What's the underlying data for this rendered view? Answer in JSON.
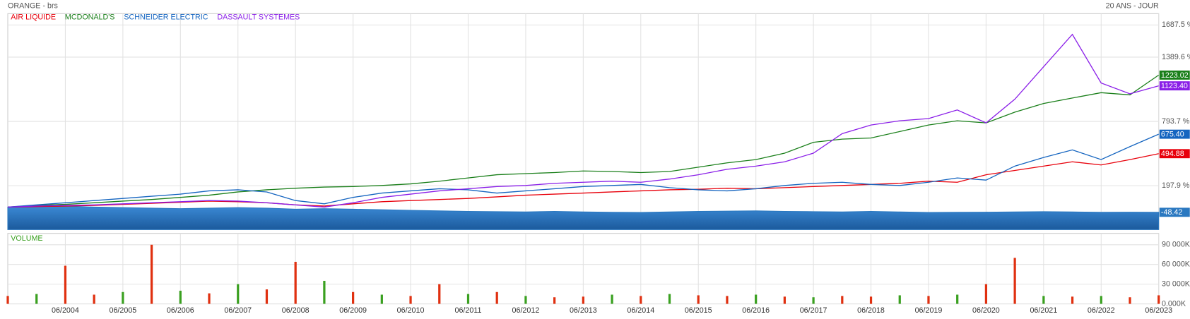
{
  "chart_data": [
    {
      "type": "line",
      "title": "ORANGE - brs",
      "subtitle": "20 ANS - JOUR",
      "legend": "top-left",
      "grid": true,
      "x": [
        "06/2003",
        "12/2003",
        "06/2004",
        "12/2004",
        "06/2005",
        "12/2005",
        "06/2006",
        "12/2006",
        "06/2007",
        "12/2007",
        "06/2008",
        "12/2008",
        "06/2009",
        "12/2009",
        "06/2010",
        "12/2010",
        "06/2011",
        "12/2011",
        "06/2012",
        "12/2012",
        "06/2013",
        "12/2013",
        "06/2014",
        "12/2014",
        "06/2015",
        "12/2015",
        "06/2016",
        "12/2016",
        "06/2017",
        "12/2017",
        "06/2018",
        "12/2018",
        "06/2019",
        "12/2019",
        "06/2020",
        "12/2020",
        "06/2021",
        "12/2021",
        "06/2022",
        "12/2022",
        "06/2023"
      ],
      "xlim": [
        "06/2003",
        "06/2023"
      ],
      "xticks": [
        "06/2004",
        "06/2005",
        "06/2006",
        "06/2007",
        "06/2008",
        "06/2009",
        "06/2010",
        "06/2011",
        "06/2012",
        "06/2013",
        "06/2014",
        "06/2015",
        "06/2016",
        "06/2017",
        "06/2018",
        "06/2019",
        "06/2020",
        "06/2021",
        "06/2022",
        "06/2023"
      ],
      "ylim": [
        -208.7,
        1792.6
      ],
      "yticks": [
        {
          "value": 197.9,
          "label": "197.9 %"
        },
        {
          "value": 793.7,
          "label": "793.7 %"
        },
        {
          "value": 1389.6,
          "label": "1389.6 %"
        },
        {
          "value": 1687.5,
          "label": "1687.5 %"
        }
      ],
      "series": [
        {
          "color": "#2a78c0",
          "fill": true,
          "values": [
            0,
            5,
            10,
            0,
            -5,
            -10,
            -15,
            -10,
            -5,
            -10,
            -20,
            -15,
            -20,
            -25,
            -30,
            -35,
            -40,
            -42,
            -45,
            -40,
            -45,
            -48,
            -50,
            -45,
            -40,
            -38,
            -35,
            -40,
            -42,
            -45,
            -40,
            -45,
            -50,
            -48,
            -47,
            -45,
            -43,
            -45,
            -48,
            -47,
            -48.42
          ]
        },
        {
          "name": "AIR LIQUIDE",
          "color": "#e8000b",
          "values": [
            0,
            5,
            10,
            15,
            25,
            35,
            45,
            55,
            50,
            40,
            20,
            10,
            30,
            50,
            60,
            70,
            80,
            95,
            110,
            120,
            130,
            140,
            150,
            160,
            165,
            175,
            170,
            180,
            190,
            200,
            210,
            220,
            240,
            230,
            300,
            340,
            380,
            420,
            390,
            440,
            494.88
          ]
        },
        {
          "name": "MCDONALD'S",
          "color": "#1a7f1a",
          "values": [
            0,
            15,
            25,
            40,
            55,
            70,
            90,
            110,
            140,
            160,
            175,
            185,
            190,
            200,
            215,
            240,
            270,
            300,
            310,
            320,
            335,
            330,
            320,
            330,
            370,
            410,
            440,
            500,
            600,
            630,
            640,
            700,
            760,
            800,
            780,
            880,
            960,
            1010,
            1060,
            1040,
            1223.02
          ]
        },
        {
          "name": "SCHNEIDER ELECTRIC",
          "color": "#1565c0",
          "values": [
            0,
            20,
            40,
            60,
            80,
            100,
            120,
            150,
            160,
            140,
            60,
            30,
            90,
            130,
            150,
            170,
            160,
            130,
            150,
            170,
            190,
            200,
            210,
            180,
            160,
            150,
            170,
            200,
            220,
            230,
            210,
            200,
            230,
            270,
            250,
            380,
            460,
            530,
            440,
            560,
            675.4
          ],
          "value_labels": [
            null,
            null,
            null,
            null,
            null,
            null,
            null,
            null,
            null,
            null,
            null,
            null,
            null,
            null,
            null,
            null,
            null,
            null,
            null,
            null,
            null,
            null,
            null,
            null,
            null,
            null,
            null,
            null,
            null,
            null,
            null,
            null,
            null,
            null,
            null,
            null,
            null,
            null,
            null,
            null,
            "675.40"
          ]
        },
        {
          "name": "DASSAULT SYSTEMES",
          "color": "#8a1ee8",
          "values": [
            0,
            10,
            15,
            20,
            30,
            40,
            50,
            60,
            55,
            40,
            20,
            0,
            40,
            90,
            120,
            150,
            170,
            190,
            200,
            220,
            230,
            240,
            230,
            260,
            300,
            350,
            380,
            420,
            500,
            680,
            760,
            800,
            820,
            900,
            780,
            1000,
            1300,
            1600,
            1150,
            1050,
            1123.4
          ],
          "value_labels": [
            null,
            null,
            null,
            null,
            null,
            null,
            null,
            null,
            null,
            null,
            null,
            null,
            null,
            null,
            null,
            null,
            null,
            null,
            null,
            null,
            null,
            null,
            null,
            null,
            null,
            null,
            null,
            null,
            null,
            null,
            null,
            null,
            null,
            null,
            null,
            null,
            null,
            null,
            null,
            null,
            "1123.40"
          ]
        }
      ]
    },
    {
      "type": "bar",
      "title": "VOLUME",
      "grid": true,
      "x": [
        "06/2003",
        "12/2003",
        "06/2004",
        "12/2004",
        "06/2005",
        "12/2005",
        "06/2006",
        "12/2006",
        "06/2007",
        "12/2007",
        "06/2008",
        "12/2008",
        "06/2009",
        "12/2009",
        "06/2010",
        "12/2010",
        "06/2011",
        "12/2011",
        "06/2012",
        "12/2012",
        "06/2013",
        "12/2013",
        "06/2014",
        "12/2014",
        "06/2015",
        "12/2015",
        "06/2016",
        "12/2016",
        "06/2017",
        "12/2017",
        "06/2018",
        "12/2018",
        "06/2019",
        "12/2019",
        "06/2020",
        "12/2020",
        "06/2021",
        "12/2021",
        "06/2022",
        "12/2022",
        "06/2023"
      ],
      "ylim": [
        0,
        107300
      ],
      "yticks": [
        {
          "value": 0,
          "label": "0.000K"
        },
        {
          "value": 30000,
          "label": "30 000K"
        },
        {
          "value": 60000,
          "label": "60 000K"
        },
        {
          "value": 90000,
          "label": "90 000K"
        }
      ],
      "values": [
        12000,
        15000,
        58000,
        14000,
        18000,
        90000,
        20000,
        16000,
        30000,
        22000,
        64000,
        35000,
        18000,
        14000,
        12000,
        30000,
        15000,
        18000,
        12000,
        10000,
        11000,
        14000,
        12000,
        15000,
        13000,
        12000,
        14000,
        11000,
        10000,
        12000,
        11000,
        13000,
        12000,
        14000,
        30000,
        70000,
        12000,
        11000,
        12000,
        10000,
        13000
      ],
      "colors": [
        "#e03010",
        "#3aa020",
        "#e03010",
        "#e03010",
        "#3aa020",
        "#e03010",
        "#3aa020",
        "#e03010",
        "#3aa020",
        "#e03010",
        "#e03010",
        "#3aa020",
        "#e03010",
        "#3aa020",
        "#e03010",
        "#e03010",
        "#3aa020",
        "#e03010",
        "#3aa020",
        "#e03010",
        "#e03010",
        "#3aa020",
        "#e03010",
        "#3aa020",
        "#e03010",
        "#e03010",
        "#3aa020",
        "#e03010",
        "#3aa020",
        "#e03010",
        "#e03010",
        "#3aa020",
        "#e03010",
        "#3aa020",
        "#e03010",
        "#e03010",
        "#3aa020",
        "#e03010",
        "#3aa020",
        "#e03010",
        "#e03010"
      ]
    }
  ]
}
